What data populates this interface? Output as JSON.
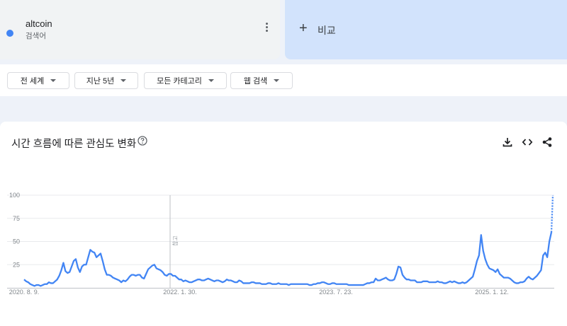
{
  "term": {
    "name": "altcoin",
    "type": "검색어",
    "color": "#4285f4"
  },
  "compare": {
    "plus": "+",
    "label": "비교"
  },
  "filters": [
    "전 세계",
    "지난 5년",
    "모든 카테고리",
    "웹 검색"
  ],
  "chart_card": {
    "title": "시간 흐름에 따른 관심도 변화"
  },
  "chart_data": {
    "type": "line",
    "title": "시간 흐름에 따른 관심도 변화",
    "xlabel": "",
    "ylabel": "",
    "ylim": [
      0,
      100
    ],
    "yticks": [
      25,
      50,
      75,
      100
    ],
    "yticklabels": [
      "25",
      "50",
      "75",
      "100"
    ],
    "xtick_labels": [
      "2020. 8. 9.",
      "2022. 1. 30.",
      "2023. 7. 23.",
      "2025. 1. 12."
    ],
    "annotation": {
      "label": "참고",
      "at": "2022. 1. 30."
    },
    "grid": true,
    "series": [
      {
        "color": "#4285f4",
        "values": [
          9,
          7,
          6,
          4,
          3,
          2,
          3,
          3,
          2,
          3,
          4,
          4,
          6,
          5,
          5,
          7,
          9,
          13,
          19,
          27,
          18,
          16,
          17,
          23,
          29,
          31,
          22,
          17,
          23,
          25,
          25,
          33,
          41,
          39,
          38,
          33,
          35,
          37,
          29,
          20,
          14,
          14,
          13,
          11,
          10,
          9,
          8,
          6,
          8,
          7,
          9,
          12,
          14,
          14,
          13,
          14,
          14,
          11,
          10,
          15,
          20,
          22,
          24,
          25,
          21,
          20,
          19,
          17,
          14,
          13,
          15,
          15,
          13,
          13,
          11,
          9,
          9,
          7,
          8,
          7,
          6,
          6,
          7,
          8,
          9,
          9,
          8,
          8,
          9,
          10,
          9,
          8,
          7,
          8,
          8,
          7,
          6,
          7,
          9,
          8,
          8,
          7,
          6,
          6,
          8,
          7,
          5,
          5,
          5,
          5,
          6,
          6,
          5,
          5,
          5,
          4,
          4,
          4,
          5,
          5,
          4,
          4,
          4,
          5,
          4,
          4,
          4,
          4,
          3,
          4,
          4,
          4,
          4,
          4,
          4,
          4,
          4,
          4,
          3,
          3,
          4,
          4,
          5,
          5,
          6,
          6,
          5,
          4,
          4,
          5,
          5,
          4,
          4,
          4,
          4,
          4,
          4,
          3,
          3,
          3,
          3,
          3,
          3,
          3,
          3,
          4,
          5,
          5,
          6,
          6,
          10,
          8,
          8,
          9,
          10,
          11,
          9,
          8,
          8,
          9,
          15,
          23,
          22,
          14,
          11,
          9,
          9,
          8,
          8,
          8,
          6,
          6,
          6,
          7,
          7,
          7,
          6,
          6,
          6,
          6,
          7,
          6,
          6,
          5,
          5,
          6,
          7,
          6,
          7,
          6,
          5,
          5,
          6,
          5,
          6,
          8,
          10,
          12,
          20,
          29,
          35,
          57,
          40,
          31,
          25,
          21,
          20,
          19,
          17,
          20,
          15,
          13,
          11,
          11,
          11,
          10,
          8,
          6,
          5,
          5,
          6,
          6,
          7,
          10,
          12,
          10,
          9,
          11,
          13,
          16,
          19,
          35,
          38,
          33,
          50,
          60
        ],
        "partial_values": [
          60,
          100
        ]
      }
    ]
  }
}
